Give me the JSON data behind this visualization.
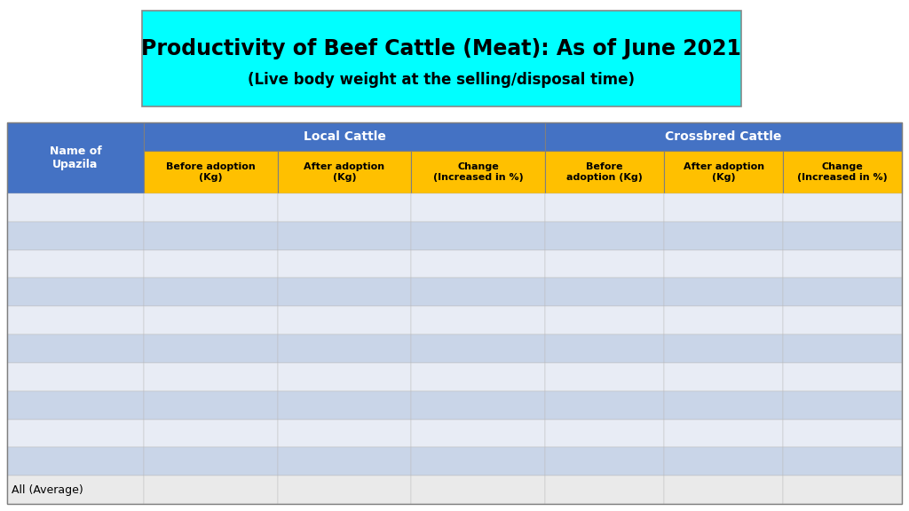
{
  "title_line1": "Productivity of Beef Cattle (Meat): As of June 2021",
  "title_line2": "(Live body weight at the selling/disposal time)",
  "title_bg_color": "#00FFFF",
  "title_font_size": 17,
  "subtitle_font_size": 12,
  "col_header_1": "Local Cattle",
  "col_header_2": "Crossbred Cattle",
  "col_header_bg": "#4472C4",
  "col_header_text": "#FFFFFF",
  "row_header_label": "Name of\nUpazila",
  "row_header_bg": "#4472C4",
  "row_header_text": "#FFFFFF",
  "sub_headers": [
    "Before adoption\n(Kg)",
    "After adoption\n(Kg)",
    "Change\n(Increased in %)",
    "Before\nadoption (Kg)",
    "After adoption\n(Kg)",
    "Change\n(Increased in %)"
  ],
  "sub_header_bg": "#FFC000",
  "sub_header_text": "#000000",
  "num_data_rows": 10,
  "last_row_label": "All (Average)",
  "row_color_light": "#E8ECF5",
  "row_color_dark": "#C9D5E8",
  "last_row_color": "#EAEAEA",
  "background_color": "#FFFFFF"
}
